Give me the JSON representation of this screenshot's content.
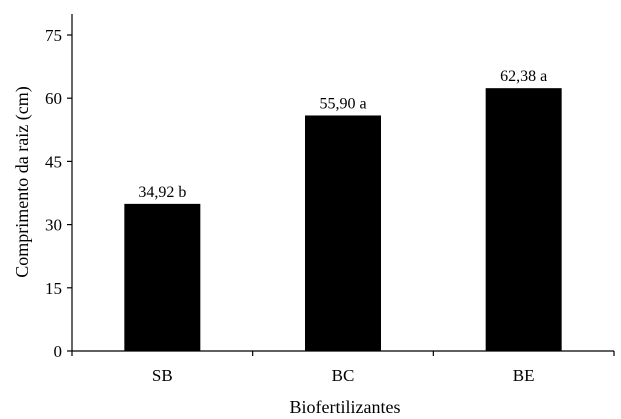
{
  "chart_data": {
    "type": "bar",
    "title": "",
    "xlabel": "Biofertilizantes",
    "ylabel": "Comprimento da raiz (cm)",
    "categories": [
      "SB",
      "BC",
      "BE"
    ],
    "values": [
      34.92,
      55.9,
      62.38
    ],
    "data_labels": [
      "34,92 b",
      "55,90 a",
      "62,38 a"
    ],
    "ylim": [
      0,
      75
    ],
    "yticks": [
      0,
      15,
      30,
      45,
      60,
      75
    ],
    "ytick_labels": [
      "0",
      "15",
      "30",
      "45",
      "60",
      "75"
    ],
    "grid": false,
    "legend": "none",
    "bar_color": "#000000"
  }
}
